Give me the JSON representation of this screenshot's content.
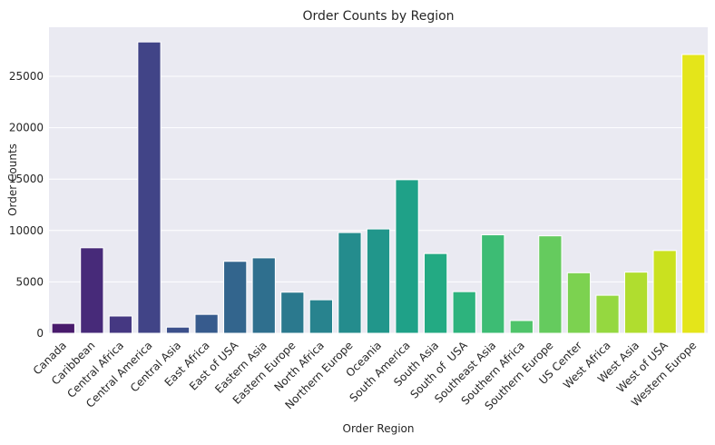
{
  "chart_data": {
    "type": "bar",
    "title": "Order Counts by Region",
    "xlabel": "Order Region",
    "ylabel": "Order Counts",
    "categories": [
      "Canada",
      "Caribbean",
      "Central Africa",
      "Central America",
      "Central Asia",
      "East Africa",
      "East of USA",
      "Eastern Asia",
      "Eastern Europe",
      "North Africa",
      "Northern Europe",
      "Oceania",
      "South America",
      "South Asia",
      "South of  USA",
      "Southeast Asia",
      "Southern Africa",
      "Southern Europe",
      "US Center",
      "West Africa",
      "West Asia",
      "West of USA",
      "Western Europe"
    ],
    "values": [
      960,
      8320,
      1680,
      28340,
      600,
      1840,
      7000,
      7340,
      4000,
      3260,
      9800,
      10150,
      14940,
      7760,
      4050,
      9580,
      1240,
      9480,
      5890,
      3700,
      5950,
      8050,
      27120
    ],
    "ylim": [
      0,
      29770
    ],
    "yticks": [
      0,
      5000,
      10000,
      15000,
      20000,
      25000
    ],
    "grid": true,
    "palette": "viridis",
    "colors": [
      "#481a6c",
      "#472a79",
      "#453882",
      "#414487",
      "#3c508b",
      "#375b8d",
      "#33658d",
      "#2f6f8e",
      "#2b798e",
      "#28838e",
      "#248c8d",
      "#21968b",
      "#1fa188",
      "#23aa83",
      "#2db37d",
      "#3dbc74",
      "#4fc46a",
      "#65cb5e",
      "#7cd250",
      "#95d840",
      "#b0dd2f",
      "#cae11f",
      "#e4e51a"
    ],
    "style": {
      "plot_background": "#eaeaf2",
      "grid_color": "#ffffff",
      "text_color": "#262626"
    }
  }
}
